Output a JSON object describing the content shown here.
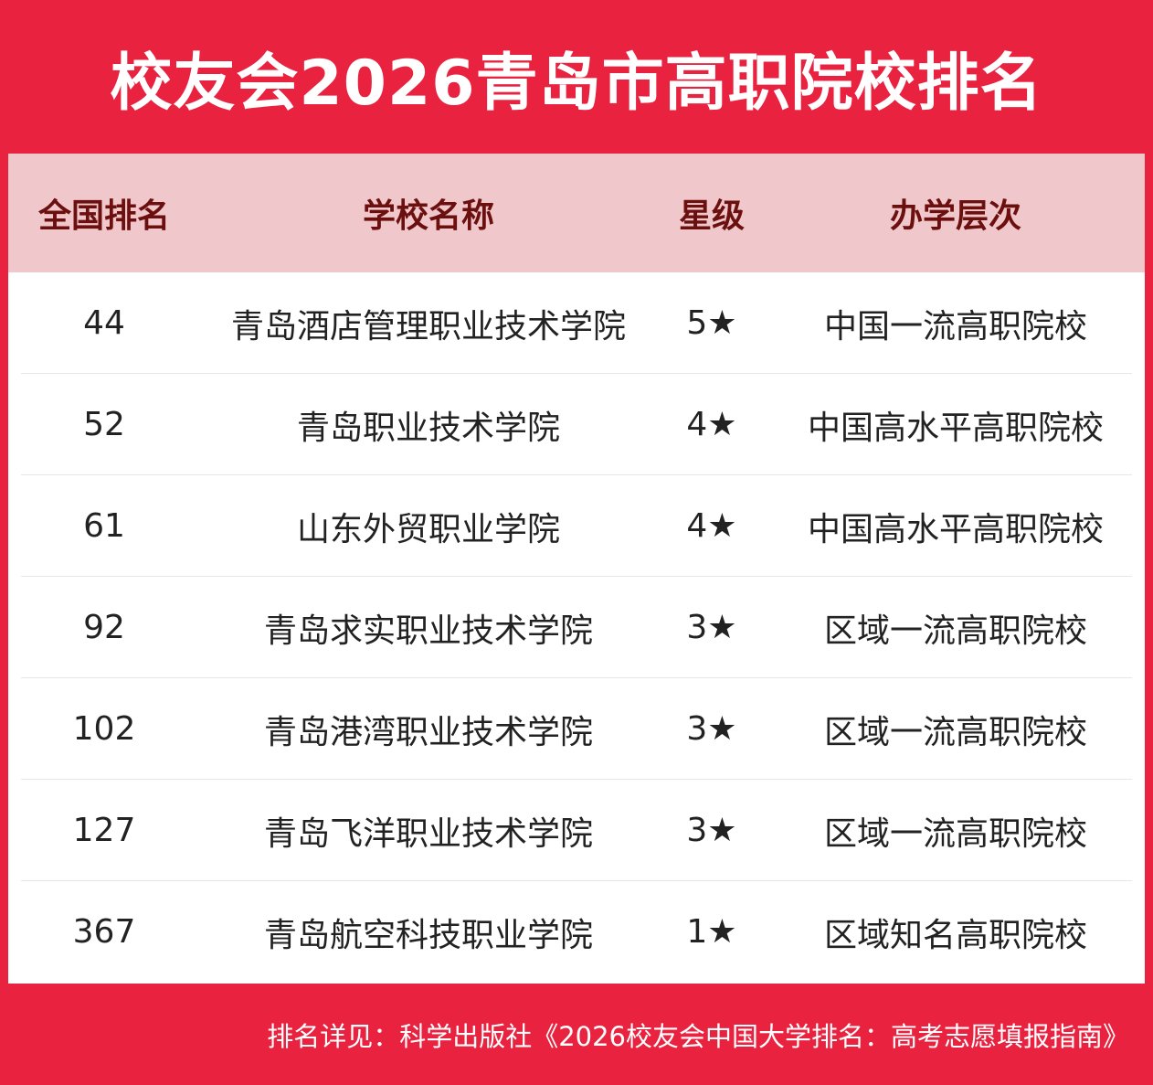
{
  "title": "校友会2026青岛市高职院校排名",
  "headers": {
    "rank": "全国排名",
    "name": "学校名称",
    "star": "星级",
    "level": "办学层次"
  },
  "rows": [
    {
      "rank": "44",
      "name": "青岛酒店管理职业技术学院",
      "star": "5★",
      "level": "中国一流高职院校"
    },
    {
      "rank": "52",
      "name": "青岛职业技术学院",
      "star": "4★",
      "level": "中国高水平高职院校"
    },
    {
      "rank": "61",
      "name": "山东外贸职业学院",
      "star": "4★",
      "level": "中国高水平高职院校"
    },
    {
      "rank": "92",
      "name": "青岛求实职业技术学院",
      "star": "3★",
      "level": "区域一流高职院校"
    },
    {
      "rank": "102",
      "name": "青岛港湾职业技术学院",
      "star": "3★",
      "level": "区域一流高职院校"
    },
    {
      "rank": "127",
      "name": "青岛飞洋职业技术学院",
      "star": "3★",
      "level": "区域一流高职院校"
    },
    {
      "rank": "367",
      "name": "青岛航空科技职业学院",
      "star": "1★",
      "level": "区域知名高职院校"
    }
  ],
  "footer": "排名详见：科学出版社《2026校友会中国大学排名：高考志愿填报指南》",
  "colors": {
    "frame": "#e8223f",
    "header_bg": "#f0c8cb",
    "header_text": "#6b0f0f"
  }
}
